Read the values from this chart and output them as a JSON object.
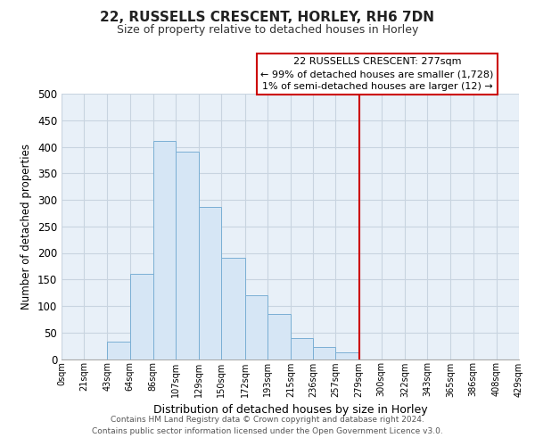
{
  "title": "22, RUSSELLS CRESCENT, HORLEY, RH6 7DN",
  "subtitle": "Size of property relative to detached houses in Horley",
  "xlabel": "Distribution of detached houses by size in Horley",
  "ylabel": "Number of detached properties",
  "footer_line1": "Contains HM Land Registry data © Crown copyright and database right 2024.",
  "footer_line2": "Contains public sector information licensed under the Open Government Licence v3.0.",
  "annotation_title": "22 RUSSELLS CRESCENT: 277sqm",
  "annotation_line1": "← 99% of detached houses are smaller (1,728)",
  "annotation_line2": "1% of semi-detached houses are larger (12) →",
  "bar_color": "#d6e6f5",
  "bar_edge_color": "#7aafd4",
  "vline_color": "#cc0000",
  "vline_x": 279,
  "bin_edges": [
    0,
    21,
    43,
    64,
    86,
    107,
    129,
    150,
    172,
    193,
    215,
    236,
    257,
    279,
    300,
    322,
    343,
    365,
    386,
    408,
    429
  ],
  "bin_heights": [
    0,
    0,
    33,
    160,
    411,
    390,
    286,
    190,
    120,
    85,
    40,
    22,
    12,
    0,
    0,
    0,
    0,
    0,
    0,
    0
  ],
  "tick_labels": [
    "0sqm",
    "21sqm",
    "43sqm",
    "64sqm",
    "86sqm",
    "107sqm",
    "129sqm",
    "150sqm",
    "172sqm",
    "193sqm",
    "215sqm",
    "236sqm",
    "257sqm",
    "279sqm",
    "300sqm",
    "322sqm",
    "343sqm",
    "365sqm",
    "386sqm",
    "408sqm",
    "429sqm"
  ],
  "ylim": [
    0,
    500
  ],
  "yticks": [
    0,
    50,
    100,
    150,
    200,
    250,
    300,
    350,
    400,
    450,
    500
  ],
  "plot_bg_color": "#e8f0f8",
  "background_color": "#ffffff",
  "grid_color": "#c8d4e0"
}
